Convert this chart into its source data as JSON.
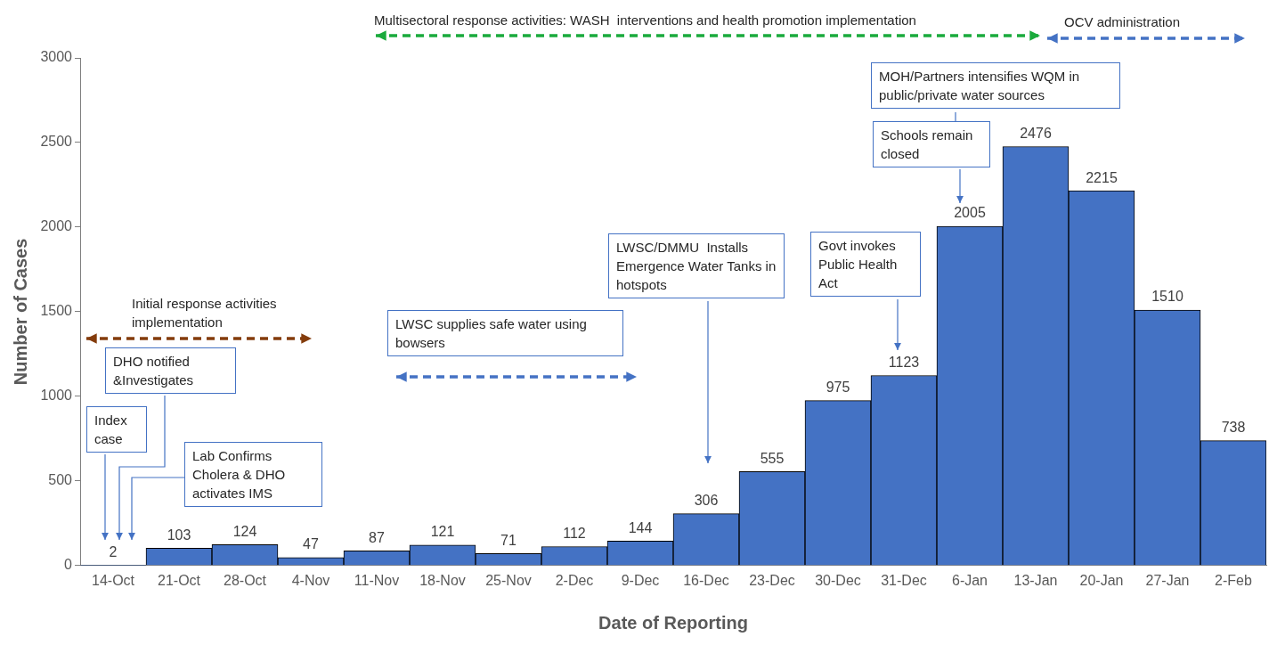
{
  "chart_data": {
    "type": "bar",
    "xlabel": "Date of Reporting",
    "ylabel": "Number of Cases",
    "categories": [
      "14-Oct",
      "21-Oct",
      "28-Oct",
      "4-Nov",
      "11-Nov",
      "18-Nov",
      "25-Nov",
      "2-Dec",
      "9-Dec",
      "16-Dec",
      "23-Dec",
      "30-Dec",
      "31-Dec",
      "6-Jan",
      "13-Jan",
      "20-Jan",
      "27-Jan",
      "2-Feb"
    ],
    "values": [
      2,
      103,
      124,
      47,
      87,
      121,
      71,
      112,
      144,
      306,
      555,
      975,
      1123,
      2005,
      2476,
      2215,
      1510,
      738
    ],
    "color": "#4472c4",
    "ylim": [
      0,
      3000
    ],
    "yticks": [
      0,
      500,
      1000,
      1500,
      2000,
      2500,
      3000
    ],
    "grid": false,
    "data_labels": true,
    "annotations": [
      "Multisectoral response activities: WASH  interventions and health promotion implementation",
      "OCV administration",
      "Initial response activities implementation",
      "DHO notified &Investigates",
      "Index case",
      "Lab Confirms Cholera & DHO activates IMS",
      "LWSC supplies safe water using bowsers",
      "LWSC/DMMU  Installs Emergence Water Tanks in hotspots",
      "Govt invokes Public Health Act",
      "MOH/Partners intensifies WQM in public/private water sources",
      "Schools remain closed"
    ]
  }
}
